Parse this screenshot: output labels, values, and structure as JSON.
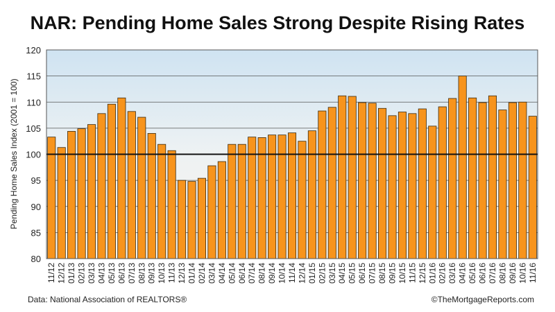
{
  "chart_data": {
    "type": "bar",
    "title": "NAR: Pending Home Sales Strong Despite Rising Rates",
    "y_label": "Pending Home Sales Index (2001 = 100)",
    "source": "Data: National Association of REALTORS®",
    "credit": "©TheMortgageReports.com",
    "categories": [
      "11/12",
      "12/12",
      "01/13",
      "02/13",
      "03/13",
      "04/13",
      "05/13",
      "06/13",
      "07/13",
      "08/13",
      "09/13",
      "10/13",
      "11/13",
      "12/13",
      "01/14",
      "02/14",
      "03/14",
      "04/14",
      "05/14",
      "06/14",
      "07/14",
      "08/14",
      "09/14",
      "10/14",
      "11/14",
      "12/14",
      "01/15",
      "02/15",
      "03/15",
      "04/15",
      "05/15",
      "06/15",
      "07/15",
      "08/15",
      "09/15",
      "10/15",
      "11/15",
      "12/15",
      "01/16",
      "02/16",
      "03/16",
      "04/16",
      "05/16",
      "06/16",
      "07/16",
      "08/16",
      "09/16",
      "10/16",
      "11/16"
    ],
    "values": [
      103.3,
      101.3,
      104.4,
      104.9,
      105.7,
      107.8,
      109.6,
      110.8,
      108.2,
      107.1,
      104.0,
      101.9,
      100.7,
      95.0,
      94.8,
      95.4,
      97.8,
      98.6,
      101.9,
      101.9,
      103.3,
      103.2,
      103.7,
      103.7,
      104.1,
      102.5,
      104.5,
      108.3,
      109.0,
      111.2,
      111.1,
      109.9,
      109.8,
      108.8,
      107.4,
      108.1,
      107.8,
      108.7,
      105.4,
      109.1,
      110.7,
      115.0,
      110.8,
      109.9,
      111.2,
      108.5,
      109.9,
      110.0,
      107.3
    ],
    "color": "#f7941d",
    "ylim": [
      80,
      120
    ],
    "yticks": [
      80,
      85,
      90,
      95,
      100,
      105,
      110,
      115,
      120
    ],
    "grid": true,
    "reference_line": 100
  }
}
